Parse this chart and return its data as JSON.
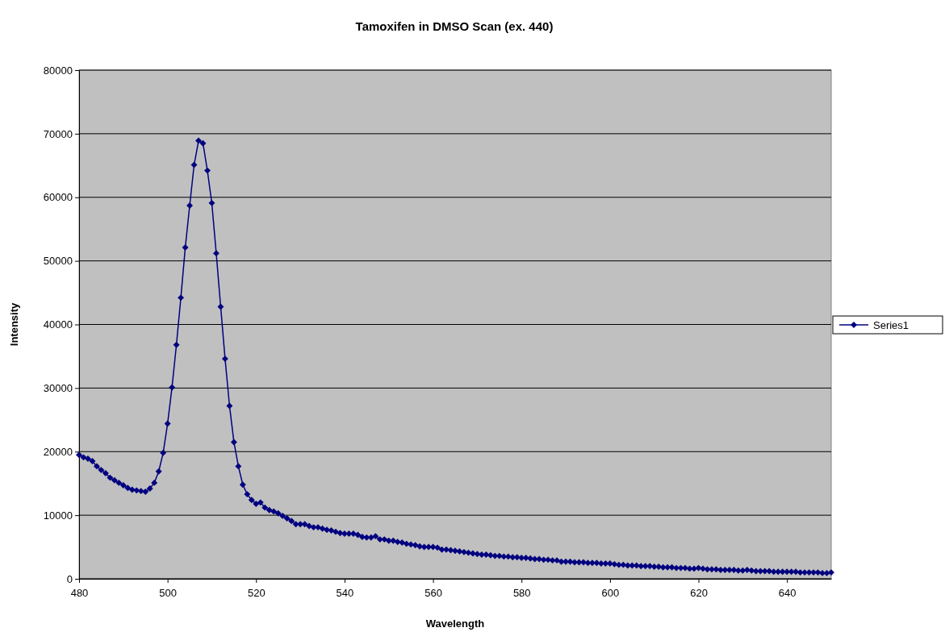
{
  "chart_data": {
    "type": "line",
    "title": "Tamoxifen in DMSO Scan (ex. 440)",
    "xlabel": "Wavelength",
    "ylabel": "Intensity",
    "x": [
      480,
      481,
      482,
      483,
      484,
      485,
      486,
      487,
      488,
      489,
      490,
      491,
      492,
      493,
      494,
      495,
      496,
      497,
      498,
      499,
      500,
      501,
      502,
      503,
      504,
      505,
      506,
      507,
      508,
      509,
      510,
      511,
      512,
      513,
      514,
      515,
      516,
      517,
      518,
      519,
      520,
      521,
      522,
      523,
      524,
      525,
      526,
      527,
      528,
      529,
      530,
      531,
      532,
      533,
      534,
      535,
      536,
      537,
      538,
      539,
      540,
      541,
      542,
      543,
      544,
      545,
      546,
      547,
      548,
      549,
      550,
      551,
      552,
      553,
      554,
      555,
      556,
      557,
      558,
      559,
      560,
      561,
      562,
      563,
      564,
      565,
      566,
      567,
      568,
      569,
      570,
      571,
      572,
      573,
      574,
      575,
      576,
      577,
      578,
      579,
      580,
      581,
      582,
      583,
      584,
      585,
      586,
      587,
      588,
      589,
      590,
      591,
      592,
      593,
      594,
      595,
      596,
      597,
      598,
      599,
      600,
      601,
      602,
      603,
      604,
      605,
      606,
      607,
      608,
      609,
      610,
      611,
      612,
      613,
      614,
      615,
      616,
      617,
      618,
      619,
      620,
      621,
      622,
      623,
      624,
      625,
      626,
      627,
      628,
      629,
      630,
      631,
      632,
      633,
      634,
      635,
      636,
      637,
      638,
      639,
      640,
      641,
      642,
      643,
      644,
      645,
      646,
      647,
      648,
      649,
      650
    ],
    "series": [
      {
        "name": "Series1",
        "color": "#000080",
        "values": [
          19500,
          19100,
          18900,
          18500,
          17700,
          17100,
          16600,
          15900,
          15500,
          15100,
          14700,
          14300,
          14000,
          13900,
          13800,
          13700,
          14200,
          15100,
          16900,
          19800,
          24400,
          30100,
          36800,
          44200,
          52100,
          58700,
          65100,
          68900,
          68500,
          64200,
          59100,
          51200,
          42800,
          34600,
          27200,
          21500,
          17700,
          14800,
          13300,
          12400,
          11800,
          12000,
          11200,
          10800,
          10600,
          10300,
          9900,
          9500,
          9100,
          8600,
          8600,
          8600,
          8300,
          8100,
          8100,
          7900,
          7700,
          7600,
          7400,
          7200,
          7100,
          7100,
          7100,
          6900,
          6600,
          6500,
          6500,
          6700,
          6200,
          6200,
          6000,
          6000,
          5800,
          5700,
          5500,
          5400,
          5300,
          5100,
          5000,
          5000,
          5000,
          4900,
          4600,
          4600,
          4500,
          4400,
          4300,
          4200,
          4100,
          4000,
          3900,
          3800,
          3800,
          3700,
          3600,
          3600,
          3500,
          3500,
          3400,
          3400,
          3300,
          3300,
          3200,
          3100,
          3100,
          3000,
          3000,
          2900,
          2900,
          2700,
          2700,
          2700,
          2600,
          2600,
          2600,
          2500,
          2500,
          2500,
          2400,
          2400,
          2400,
          2300,
          2200,
          2200,
          2100,
          2100,
          2100,
          2000,
          2000,
          2000,
          1900,
          1900,
          1800,
          1800,
          1800,
          1700,
          1700,
          1700,
          1600,
          1600,
          1700,
          1600,
          1500,
          1500,
          1500,
          1400,
          1400,
          1400,
          1400,
          1300,
          1300,
          1400,
          1300,
          1200,
          1200,
          1200,
          1200,
          1100,
          1100,
          1100,
          1100,
          1100,
          1100,
          1000,
          1000,
          1000,
          1000,
          1000,
          900,
          900,
          1000
        ]
      }
    ],
    "xlim": [
      480,
      650
    ],
    "xticks": [
      480,
      500,
      520,
      540,
      560,
      580,
      600,
      620,
      640
    ],
    "ylim": [
      0,
      80000
    ],
    "yticks": [
      0,
      10000,
      20000,
      30000,
      40000,
      50000,
      60000,
      70000,
      80000
    ],
    "grid": "y",
    "legend": "right",
    "marker": "diamond",
    "line_style": "solid"
  }
}
